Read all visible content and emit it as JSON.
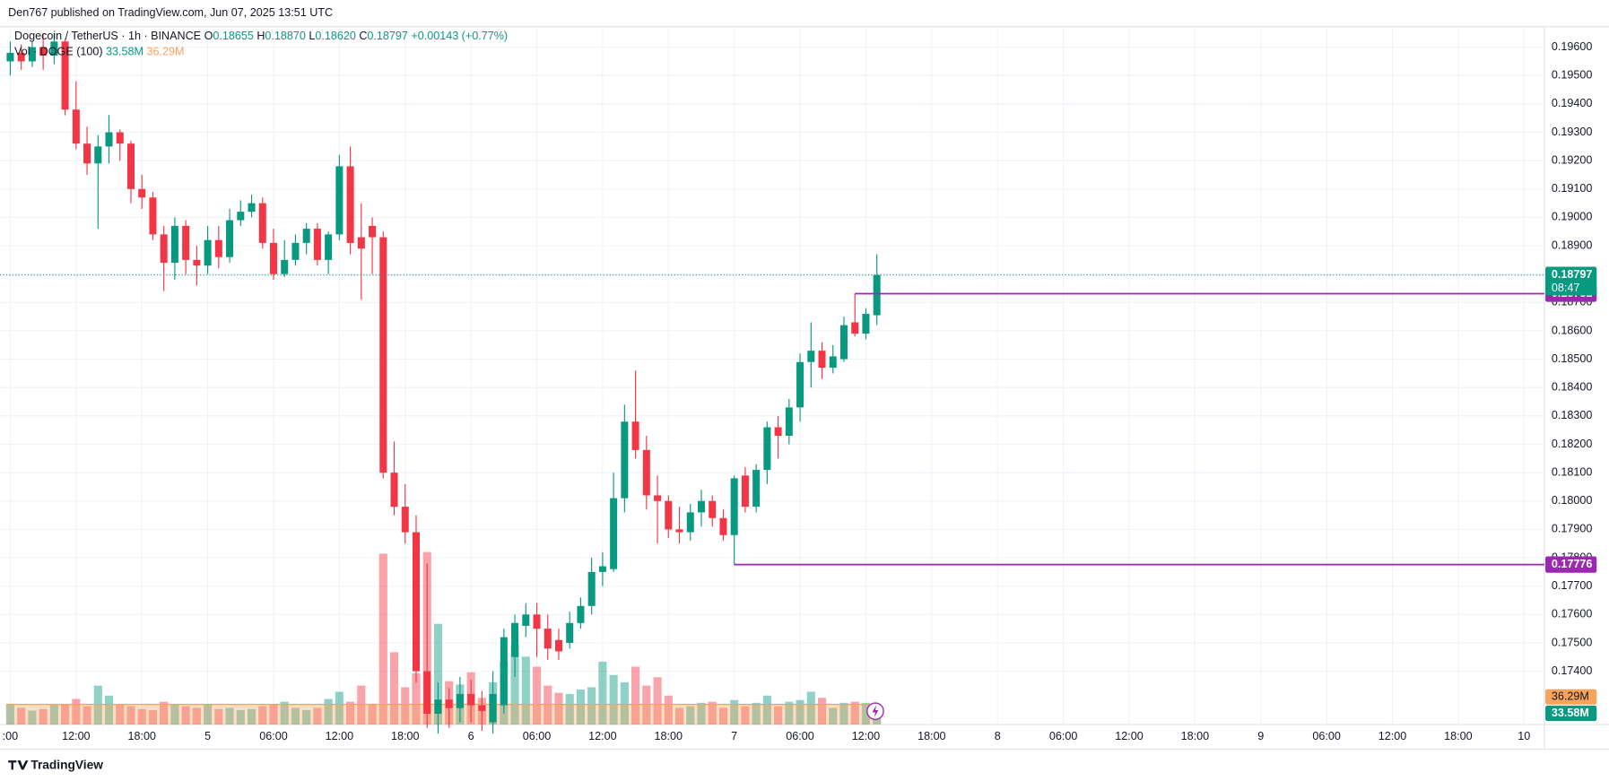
{
  "header": {
    "publisher": "Den767 published on TradingView.com, Jun 07, 2025 13:51 UTC",
    "symbol": "Dogecoin / TetherUS · 1h · BINANCE",
    "ohlc_letters": [
      "O",
      "H",
      "L",
      "C"
    ],
    "ohlc": [
      "0.18655",
      "0.18870",
      "0.18620",
      "0.18797"
    ],
    "change": "+0.00143 (+0.77%)",
    "volume_title": "Vol · DOGE (100)",
    "volume_label": "33.58M",
    "volume_ma_label": "36.29M",
    "countdown": "08:47",
    "brand": "TradingView"
  },
  "chart_data": {
    "type": "candlestick",
    "open": [
      0.1955,
      0.1958,
      0.1955,
      0.196,
      0.1957,
      0.1962,
      0.1938,
      0.1926,
      0.1919,
      0.1925,
      0.193,
      0.1926,
      0.191,
      0.1907,
      0.1894,
      0.1884,
      0.1897,
      0.1885,
      0.1883,
      0.1892,
      0.1886,
      0.1899,
      0.1902,
      0.1905,
      0.1891,
      0.188,
      0.1885,
      0.1891,
      0.1896,
      0.1885,
      0.1894,
      0.1918,
      0.1893,
      0.1897,
      0.1893,
      0.181,
      0.1798,
      0.1789,
      0.174,
      0.1725,
      0.173,
      0.1727,
      0.1732,
      0.1728,
      0.1722,
      0.1728,
      0.1745,
      0.1756,
      0.176,
      0.1755,
      0.1751,
      0.175,
      0.1757,
      0.1763,
      0.1775,
      0.1776,
      0.1801,
      0.1828,
      0.1818,
      0.1802,
      0.18,
      0.179,
      0.1789,
      0.1796,
      0.18,
      0.1794,
      0.1788,
      0.1809,
      0.1798,
      0.1811,
      0.1826,
      0.1823,
      0.1833,
      0.1849,
      0.1853,
      0.1847,
      0.185,
      0.1863,
      0.1859,
      0.18655
    ],
    "high": [
      0.1962,
      0.1961,
      0.1962,
      0.1965,
      0.1965,
      0.1963,
      0.1948,
      0.1932,
      0.1929,
      0.1936,
      0.1931,
      0.1927,
      0.1915,
      0.1909,
      0.1897,
      0.19,
      0.1899,
      0.189,
      0.1897,
      0.1897,
      0.1903,
      0.1906,
      0.1908,
      0.1907,
      0.1896,
      0.1892,
      0.1894,
      0.1898,
      0.1898,
      0.1895,
      0.1922,
      0.1925,
      0.1905,
      0.19,
      0.1895,
      0.1821,
      0.1806,
      0.1795,
      0.1778,
      0.1736,
      0.1734,
      0.1738,
      0.1737,
      0.1733,
      0.174,
      0.1755,
      0.176,
      0.1764,
      0.1764,
      0.176,
      0.1755,
      0.1761,
      0.1766,
      0.178,
      0.1782,
      0.181,
      0.1834,
      0.1846,
      0.1823,
      0.1809,
      0.1802,
      0.1798,
      0.1799,
      0.1804,
      0.1802,
      0.1797,
      0.1809,
      0.1812,
      0.1813,
      0.1828,
      0.183,
      0.1836,
      0.1852,
      0.1863,
      0.1856,
      0.1855,
      0.1865,
      0.18731,
      0.1868,
      0.1887
    ],
    "low": [
      0.195,
      0.1952,
      0.1953,
      0.1952,
      0.1954,
      0.1936,
      0.1924,
      0.1915,
      0.1896,
      0.1919,
      0.192,
      0.1905,
      0.1903,
      0.1892,
      0.1874,
      0.1878,
      0.188,
      0.1876,
      0.188,
      0.1882,
      0.1884,
      0.1897,
      0.19,
      0.1889,
      0.1878,
      0.1879,
      0.1883,
      0.1887,
      0.1883,
      0.188,
      0.1892,
      0.1887,
      0.1871,
      0.188,
      0.1808,
      0.1795,
      0.1785,
      0.1736,
      0.172,
      0.1718,
      0.172,
      0.1722,
      0.1722,
      0.1719,
      0.1718,
      0.1725,
      0.1738,
      0.1752,
      0.1745,
      0.1744,
      0.1744,
      0.1748,
      0.1755,
      0.176,
      0.177,
      0.1775,
      0.1796,
      0.1815,
      0.1797,
      0.1785,
      0.1787,
      0.1785,
      0.1786,
      0.1791,
      0.1791,
      0.1786,
      0.17776,
      0.1796,
      0.1796,
      0.1806,
      0.1815,
      0.182,
      0.1828,
      0.184,
      0.1843,
      0.1845,
      0.1849,
      0.1858,
      0.1857,
      0.1862
    ],
    "close": [
      0.1958,
      0.1955,
      0.196,
      0.1957,
      0.1962,
      0.1938,
      0.1926,
      0.1919,
      0.1925,
      0.193,
      0.1926,
      0.191,
      0.1907,
      0.1894,
      0.1884,
      0.1897,
      0.1885,
      0.1883,
      0.1892,
      0.1886,
      0.1899,
      0.1902,
      0.1905,
      0.1891,
      0.188,
      0.1885,
      0.1891,
      0.1896,
      0.1885,
      0.1894,
      0.1918,
      0.1891,
      0.1889,
      0.1893,
      0.181,
      0.1798,
      0.1789,
      0.174,
      0.1725,
      0.173,
      0.1727,
      0.1732,
      0.1728,
      0.1726,
      0.1732,
      0.1752,
      0.1757,
      0.176,
      0.1755,
      0.1748,
      0.1747,
      0.1757,
      0.1763,
      0.1775,
      0.1777,
      0.1801,
      0.1828,
      0.1818,
      0.1802,
      0.18,
      0.179,
      0.1789,
      0.1796,
      0.18,
      0.1794,
      0.1788,
      0.1808,
      0.1798,
      0.1811,
      0.1826,
      0.1823,
      0.1833,
      0.1849,
      0.1853,
      0.1847,
      0.1851,
      0.1862,
      0.1859,
      0.1866,
      0.18797
    ],
    "volume": [
      37,
      30,
      25,
      28,
      35,
      37,
      46,
      33,
      70,
      52,
      37,
      33,
      28,
      26,
      41,
      37,
      33,
      30,
      37,
      28,
      30,
      26,
      28,
      33,
      37,
      41,
      30,
      26,
      30,
      46,
      59,
      41,
      70,
      37,
      307,
      130,
      67,
      92,
      310,
      181,
      78,
      72,
      94,
      48,
      76,
      113,
      144,
      122,
      104,
      70,
      57,
      55,
      63,
      67,
      113,
      89,
      76,
      104,
      70,
      85,
      52,
      30,
      33,
      39,
      41,
      30,
      44,
      33,
      39,
      52,
      33,
      41,
      44,
      59,
      48,
      30,
      39,
      41,
      39,
      33.58
    ],
    "volume_ma": 36.29,
    "volume_ylim": [
      0,
      1250
    ],
    "ylim": [
      0.17212,
      0.19665
    ],
    "yticks": [
      {
        "value": 0.196,
        "label": "0.19600"
      },
      {
        "value": 0.195,
        "label": "0.19500"
      },
      {
        "value": 0.194,
        "label": "0.19400"
      },
      {
        "value": 0.193,
        "label": "0.19300"
      },
      {
        "value": 0.192,
        "label": "0.19200"
      },
      {
        "value": 0.191,
        "label": "0.19100"
      },
      {
        "value": 0.19,
        "label": "0.19000"
      },
      {
        "value": 0.189,
        "label": "0.18900"
      },
      {
        "value": 0.188,
        "label": "0.18800"
      },
      {
        "value": 0.187,
        "label": "0.18700"
      },
      {
        "value": 0.186,
        "label": "0.18600"
      },
      {
        "value": 0.185,
        "label": "0.18500"
      },
      {
        "value": 0.184,
        "label": "0.18400"
      },
      {
        "value": 0.183,
        "label": "0.18300"
      },
      {
        "value": 0.182,
        "label": "0.18200"
      },
      {
        "value": 0.181,
        "label": "0.18100"
      },
      {
        "value": 0.18,
        "label": "0.18000"
      },
      {
        "value": 0.179,
        "label": "0.17900"
      },
      {
        "value": 0.178,
        "label": "0.17800"
      },
      {
        "value": 0.177,
        "label": "0.17700"
      },
      {
        "value": 0.176,
        "label": "0.17600"
      },
      {
        "value": 0.175,
        "label": "0.17500"
      },
      {
        "value": 0.174,
        "label": "0.17400"
      }
    ],
    "x_labels": [
      ":00",
      "12:00",
      "18:00",
      "5",
      "06:00",
      "12:00",
      "18:00",
      "6",
      "06:00",
      "12:00",
      "18:00",
      "7",
      "06:00",
      "12:00",
      "18:00",
      "8",
      "06:00",
      "12:00",
      "18:00",
      "9",
      "06:00",
      "12:00",
      "18:00",
      "10"
    ],
    "horizontal_lines": [
      0.18731,
      0.17776
    ],
    "up_color": "#089981",
    "down_color": "#f23645",
    "line_color": "#9c27b0",
    "volume_ma_color": "#f7a35c",
    "grid": true
  }
}
